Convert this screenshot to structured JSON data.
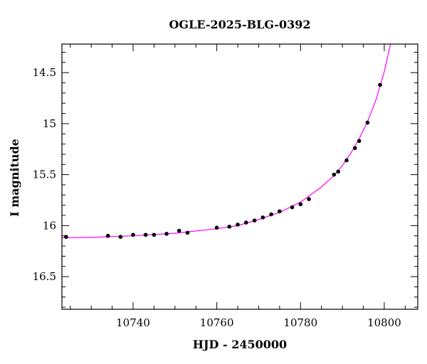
{
  "chart_data": {
    "type": "scatter",
    "title": "OGLE-2025-BLG-0392",
    "xlabel": "HJD - 2450000",
    "ylabel": "I magnitude",
    "xlim": [
      10723,
      10808
    ],
    "ylim": [
      16.82,
      14.22
    ],
    "y_inverted": true,
    "x_ticks": [
      10740,
      10760,
      10780,
      10800
    ],
    "x_tick_labels": [
      "10740",
      "10760",
      "10780",
      "10800"
    ],
    "y_ticks": [
      14.5,
      15,
      15.5,
      16,
      16.5
    ],
    "y_tick_labels": [
      "14.5",
      "15",
      "15.5",
      "16",
      "16.5"
    ],
    "x_minor_step": 5,
    "y_minor_step": 0.1,
    "grid": false,
    "colors": {
      "points": "#000000",
      "model": "#ff00ff",
      "frame": "#000000"
    },
    "series": [
      {
        "kind": "points",
        "x": [
          10724,
          10734,
          10737,
          10740,
          10743,
          10745,
          10748,
          10751,
          10753,
          10760,
          10763,
          10765,
          10767,
          10769,
          10771,
          10773,
          10775,
          10778,
          10780,
          10782,
          10788,
          10789,
          10791,
          10793,
          10794,
          10796,
          10799
        ],
        "y": [
          16.11,
          16.1,
          16.11,
          16.09,
          16.09,
          16.09,
          16.08,
          16.05,
          16.07,
          16.02,
          16.01,
          15.99,
          15.97,
          15.95,
          15.92,
          15.89,
          15.86,
          15.82,
          15.79,
          15.74,
          15.5,
          15.47,
          15.36,
          15.24,
          15.17,
          14.99,
          14.62
        ]
      },
      {
        "kind": "model",
        "x": [
          10723,
          10730,
          10740,
          10750,
          10760,
          10765,
          10770,
          10775,
          10780,
          10785,
          10788,
          10790,
          10792,
          10794,
          10796,
          10798,
          10800,
          10801.5
        ],
        "y": [
          16.12,
          16.115,
          16.1,
          16.075,
          16.03,
          16.0,
          15.94,
          15.87,
          15.77,
          15.62,
          15.51,
          15.41,
          15.29,
          15.15,
          14.98,
          14.77,
          14.49,
          14.22
        ]
      }
    ]
  }
}
